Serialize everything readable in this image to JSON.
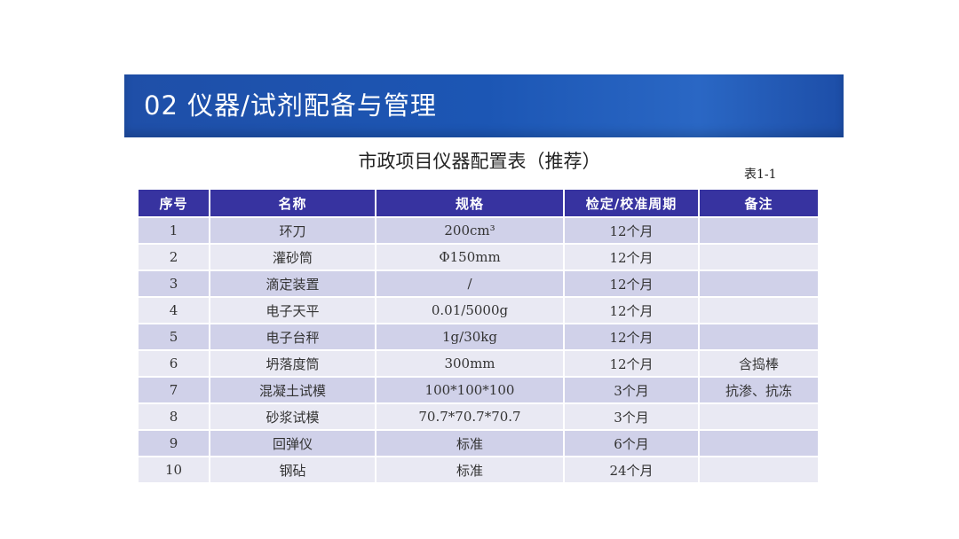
{
  "header": {
    "title": "02 仪器/试剂配备与管理"
  },
  "table_title": "市政项目仪器配置表（推荐）",
  "table_no": "表1-1",
  "columns": [
    "序号",
    "名称",
    "规格",
    "检定/校准周期",
    "备注"
  ],
  "rows": [
    [
      "1",
      "环刀",
      "200cm³",
      "12个月",
      ""
    ],
    [
      "2",
      "灌砂筒",
      "Φ150mm",
      "12个月",
      ""
    ],
    [
      "3",
      "滴定装置",
      "/",
      "12个月",
      ""
    ],
    [
      "4",
      "电子天平",
      "0.01/5000g",
      "12个月",
      ""
    ],
    [
      "5",
      "电子台秤",
      "1g/30kg",
      "12个月",
      ""
    ],
    [
      "6",
      "坍落度筒",
      "300mm",
      "12个月",
      "含捣棒"
    ],
    [
      "7",
      "混凝土试模",
      "100*100*100",
      "3个月",
      "抗渗、抗冻"
    ],
    [
      "8",
      "砂浆试模",
      "70.7*70.7*70.7",
      "3个月",
      ""
    ],
    [
      "9",
      "回弹仪",
      "标准",
      "6个月",
      ""
    ],
    [
      "10",
      "钢砧",
      "标准",
      "24个月",
      ""
    ]
  ]
}
